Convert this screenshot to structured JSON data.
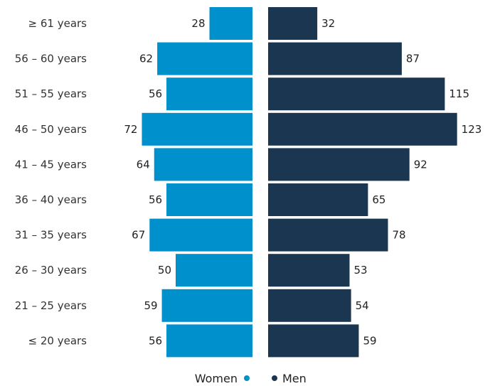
{
  "chart_data": {
    "type": "bar",
    "orientation": "horizontal",
    "layout": "population-pyramid",
    "categories": [
      "≥ 61 years",
      "56 – 60 years",
      "51 – 55 years",
      "46 – 50 years",
      "41 – 45 years",
      "36 – 40 years",
      "31 – 35 years",
      "26 – 30 years",
      "21 – 25 years",
      "≤ 20 years"
    ],
    "series": [
      {
        "name": "Women",
        "color": "#0090cc",
        "values": [
          28,
          62,
          56,
          72,
          64,
          56,
          67,
          50,
          59,
          56
        ]
      },
      {
        "name": "Men",
        "color": "#1a3651",
        "values": [
          32,
          87,
          115,
          123,
          92,
          65,
          78,
          53,
          54,
          59
        ]
      }
    ],
    "legend_position": "bottom-center",
    "grid": false
  }
}
